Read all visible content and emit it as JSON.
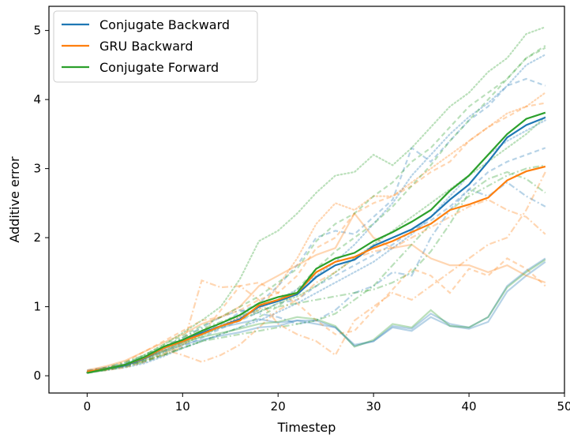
{
  "chart_data": {
    "type": "line",
    "title": "",
    "xlabel": "Timestep",
    "ylabel": "Additive error",
    "xlim": [
      -4,
      50
    ],
    "ylim": [
      -0.25,
      5.35
    ],
    "xticks": [
      0,
      10,
      20,
      30,
      40,
      50
    ],
    "yticks": [
      0,
      1,
      2,
      3,
      4,
      5
    ],
    "grid": false,
    "legend_position": "top-left",
    "x": [
      0,
      2,
      4,
      6,
      8,
      10,
      12,
      14,
      16,
      18,
      20,
      22,
      24,
      26,
      28,
      30,
      32,
      34,
      36,
      38,
      40,
      42,
      44,
      46,
      48
    ],
    "series": [
      {
        "name": "Conjugate Backward",
        "color": "#1f77b4",
        "values": [
          0.06,
          0.1,
          0.15,
          0.25,
          0.4,
          0.5,
          0.62,
          0.72,
          0.82,
          1.0,
          1.08,
          1.18,
          1.43,
          1.6,
          1.68,
          1.88,
          2.0,
          2.12,
          2.3,
          2.55,
          2.77,
          3.1,
          3.45,
          3.63,
          3.74
        ]
      },
      {
        "name": "GRU Backward",
        "color": "#ff7f0e",
        "values": [
          0.06,
          0.1,
          0.16,
          0.26,
          0.4,
          0.5,
          0.6,
          0.72,
          0.8,
          1.02,
          1.1,
          1.2,
          1.5,
          1.65,
          1.72,
          1.85,
          1.95,
          2.08,
          2.2,
          2.4,
          2.48,
          2.58,
          2.83,
          2.96,
          3.03
        ]
      },
      {
        "name": "Conjugate Forward",
        "color": "#2ca02c",
        "values": [
          0.04,
          0.1,
          0.16,
          0.27,
          0.42,
          0.52,
          0.65,
          0.76,
          0.88,
          1.05,
          1.14,
          1.2,
          1.55,
          1.7,
          1.78,
          1.95,
          2.08,
          2.23,
          2.4,
          2.68,
          2.9,
          3.2,
          3.5,
          3.72,
          3.81
        ]
      }
    ],
    "background_traces": [
      {
        "color": "#1f77b4",
        "style": "solid",
        "values": [
          0.05,
          0.1,
          0.17,
          0.27,
          0.4,
          0.5,
          0.6,
          0.7,
          0.76,
          0.82,
          0.77,
          0.8,
          0.75,
          0.7,
          0.43,
          0.5,
          0.7,
          0.65,
          0.85,
          0.72,
          0.68,
          0.78,
          1.22,
          1.45,
          1.65
        ]
      },
      {
        "color": "#1f77b4",
        "style": "dashed",
        "values": [
          0.08,
          0.12,
          0.15,
          0.22,
          0.35,
          0.48,
          0.62,
          0.75,
          0.92,
          1.05,
          1.3,
          1.6,
          2.0,
          2.1,
          2.05,
          2.3,
          2.55,
          3.3,
          3.1,
          3.4,
          3.7,
          3.9,
          4.2,
          4.3,
          4.2
        ]
      },
      {
        "color": "#1f77b4",
        "style": "dashed",
        "values": [
          0.06,
          0.09,
          0.14,
          0.2,
          0.3,
          0.42,
          0.55,
          0.68,
          0.8,
          0.92,
          1.05,
          1.1,
          1.3,
          1.45,
          1.6,
          1.75,
          1.9,
          2.1,
          2.25,
          2.45,
          2.7,
          2.95,
          3.1,
          3.2,
          3.3
        ]
      },
      {
        "color": "#1f77b4",
        "style": "dashdot",
        "values": [
          0.07,
          0.12,
          0.18,
          0.28,
          0.42,
          0.55,
          0.7,
          0.85,
          0.95,
          0.9,
          0.85,
          0.75,
          0.8,
          0.95,
          1.2,
          1.3,
          1.5,
          1.45,
          2.0,
          2.4,
          2.7,
          2.6,
          2.8,
          2.6,
          2.45
        ]
      },
      {
        "color": "#1f77b4",
        "style": "dotted",
        "values": [
          0.05,
          0.1,
          0.15,
          0.25,
          0.38,
          0.5,
          0.62,
          0.72,
          0.85,
          0.98,
          1.1,
          1.25,
          1.45,
          1.65,
          1.9,
          2.2,
          2.5,
          2.9,
          3.2,
          3.5,
          3.75,
          3.95,
          4.2,
          4.5,
          4.65
        ]
      },
      {
        "color": "#1f77b4",
        "style": "dotted",
        "values": [
          0.04,
          0.08,
          0.12,
          0.18,
          0.28,
          0.4,
          0.5,
          0.6,
          0.7,
          0.8,
          0.92,
          1.05,
          1.2,
          1.35,
          1.5,
          1.65,
          1.85,
          2.05,
          2.3,
          2.6,
          2.9,
          3.2,
          3.4,
          3.55,
          3.7
        ]
      },
      {
        "color": "#1f77b4",
        "style": "solid",
        "values": [
          0.06,
          0.11,
          0.16,
          0.25,
          0.35,
          0.45,
          0.52,
          0.58,
          0.63,
          0.7,
          0.72,
          0.8,
          0.8,
          0.7,
          0.45,
          0.5,
          0.72,
          0.68,
          0.9,
          0.75,
          0.7,
          0.85,
          1.3,
          1.52,
          1.7
        ]
      },
      {
        "color": "#ff7f0e",
        "style": "dashed",
        "values": [
          0.05,
          0.08,
          0.12,
          0.2,
          0.32,
          0.45,
          0.6,
          0.95,
          1.3,
          1.35,
          1.2,
          1.05,
          0.8,
          0.6,
          0.65,
          0.95,
          1.25,
          1.55,
          1.45,
          1.2,
          1.55,
          1.45,
          1.7,
          1.55,
          1.3
        ]
      },
      {
        "color": "#ff7f0e",
        "style": "dashdot",
        "values": [
          0.06,
          0.1,
          0.15,
          0.22,
          0.3,
          0.42,
          1.38,
          1.28,
          1.3,
          1.1,
          0.75,
          0.6,
          0.5,
          0.3,
          0.8,
          1.0,
          1.2,
          1.1,
          1.3,
          1.5,
          1.7,
          1.9,
          2.0,
          2.4,
          2.95
        ]
      },
      {
        "color": "#ff7f0e",
        "style": "dashed",
        "values": [
          0.07,
          0.12,
          0.2,
          0.35,
          0.5,
          0.65,
          0.8,
          0.85,
          0.95,
          1.1,
          1.2,
          1.45,
          1.85,
          2.0,
          2.35,
          2.5,
          2.6,
          2.75,
          2.95,
          3.1,
          3.4,
          3.6,
          3.75,
          3.9,
          3.95
        ]
      },
      {
        "color": "#ff7f0e",
        "style": "dotted",
        "values": [
          0.05,
          0.09,
          0.14,
          0.24,
          0.36,
          0.48,
          0.6,
          0.72,
          0.85,
          0.95,
          1.3,
          1.7,
          2.2,
          2.5,
          2.4,
          2.6,
          2.6,
          2.8,
          3.0,
          3.2,
          3.4,
          3.6,
          3.8,
          3.9,
          4.1
        ]
      },
      {
        "color": "#ff7f0e",
        "style": "dashdot",
        "values": [
          0.06,
          0.1,
          0.16,
          0.25,
          0.38,
          0.3,
          0.2,
          0.3,
          0.45,
          0.7,
          0.95,
          1.1,
          1.35,
          1.5,
          1.7,
          1.8,
          1.85,
          2.0,
          2.15,
          2.3,
          2.45,
          2.55,
          2.4,
          2.3,
          2.05
        ]
      },
      {
        "color": "#ff7f0e",
        "style": "solid",
        "values": [
          0.08,
          0.14,
          0.22,
          0.35,
          0.48,
          0.6,
          0.75,
          0.85,
          1.0,
          1.3,
          1.45,
          1.6,
          1.75,
          1.85,
          2.35,
          2.0,
          1.85,
          1.9,
          1.7,
          1.6,
          1.6,
          1.5,
          1.6,
          1.45,
          1.35
        ]
      },
      {
        "color": "#2ca02c",
        "style": "solid",
        "values": [
          0.04,
          0.09,
          0.15,
          0.25,
          0.36,
          0.48,
          0.56,
          0.62,
          0.68,
          0.75,
          0.78,
          0.85,
          0.82,
          0.72,
          0.42,
          0.52,
          0.75,
          0.7,
          0.95,
          0.72,
          0.7,
          0.85,
          1.28,
          1.5,
          1.68
        ]
      },
      {
        "color": "#2ca02c",
        "style": "dashed",
        "values": [
          0.05,
          0.1,
          0.18,
          0.3,
          0.45,
          0.58,
          0.72,
          0.85,
          1.0,
          1.15,
          1.35,
          1.55,
          1.95,
          2.2,
          2.35,
          2.6,
          2.8,
          3.1,
          3.3,
          3.6,
          3.9,
          4.1,
          4.3,
          4.6,
          4.75
        ]
      },
      {
        "color": "#2ca02c",
        "style": "dashdot",
        "values": [
          0.06,
          0.12,
          0.2,
          0.3,
          0.42,
          0.55,
          0.68,
          0.78,
          0.88,
          0.95,
          1.0,
          1.05,
          1.1,
          1.15,
          1.2,
          1.25,
          1.35,
          1.5,
          1.8,
          2.2,
          2.65,
          2.85,
          2.95,
          2.85,
          2.65
        ]
      },
      {
        "color": "#2ca02c",
        "style": "dotted",
        "values": [
          0.05,
          0.1,
          0.16,
          0.3,
          0.45,
          0.62,
          0.8,
          1.0,
          1.4,
          1.95,
          2.1,
          2.35,
          2.65,
          2.9,
          2.95,
          3.2,
          3.05,
          3.3,
          3.6,
          3.9,
          4.1,
          4.4,
          4.6,
          4.95,
          5.05
        ]
      },
      {
        "color": "#2ca02c",
        "style": "dashed",
        "values": [
          0.06,
          0.1,
          0.15,
          0.22,
          0.3,
          0.4,
          0.5,
          0.6,
          0.7,
          0.85,
          1.0,
          1.25,
          1.55,
          1.8,
          2.0,
          2.2,
          2.45,
          2.75,
          3.05,
          3.4,
          3.7,
          4.0,
          4.3,
          4.6,
          4.78
        ]
      },
      {
        "color": "#2ca02c",
        "style": "dashdot",
        "values": [
          0.04,
          0.08,
          0.13,
          0.2,
          0.3,
          0.4,
          0.5,
          0.55,
          0.6,
          0.65,
          0.7,
          0.75,
          0.8,
          0.9,
          1.1,
          1.3,
          1.6,
          1.9,
          2.2,
          2.4,
          2.6,
          2.75,
          2.9,
          3.0,
          3.05
        ]
      },
      {
        "color": "#2ca02c",
        "style": "dotted",
        "values": [
          0.05,
          0.09,
          0.14,
          0.22,
          0.33,
          0.45,
          0.58,
          0.7,
          0.82,
          0.92,
          1.05,
          1.15,
          1.3,
          1.5,
          1.7,
          1.9,
          2.1,
          2.3,
          2.5,
          2.7,
          2.9,
          3.1,
          3.3,
          3.5,
          3.75
        ]
      }
    ]
  }
}
